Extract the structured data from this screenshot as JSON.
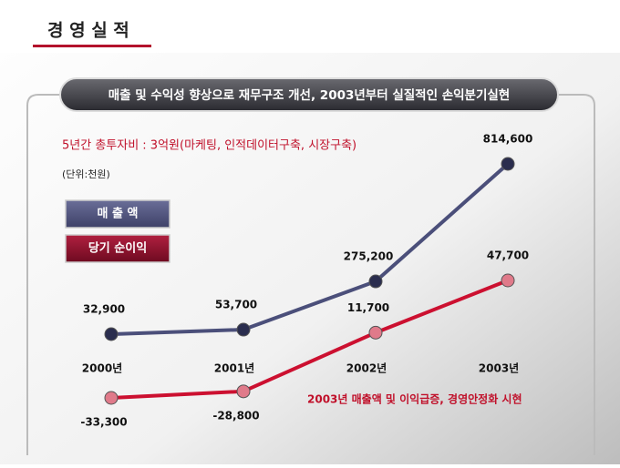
{
  "header": {
    "title": "경 영 실 적"
  },
  "banner": "매출 및 수익성 향상으로 재무구조 개선, 2003년부터 실질적인 손익분기실현",
  "chart_data": {
    "type": "line",
    "subtitle": "5년간 총투자비 : 3억원(마케팅, 인적데이터구축, 시장구축)",
    "unit_label": "(단위:천원)",
    "annotation": "2003년  매출액 및 이익급증, 경영안정화 시현",
    "categories": [
      "2000년",
      "2001년",
      "2002년",
      "2003년"
    ],
    "series": [
      {
        "name": "매 출 액",
        "color": "#4b4f7a",
        "marker_color": "#2a2d4e",
        "values": [
          32900,
          53700,
          275200,
          814600
        ],
        "value_labels": [
          "32,900",
          "53,700",
          "275,200",
          "814,600"
        ]
      },
      {
        "name": "당기 순이익",
        "color": "#cc1030",
        "marker_color": "#e07a8a",
        "axis": "y2",
        "values": [
          -33300,
          -28800,
          11700,
          47700
        ],
        "value_labels": [
          "-33,300",
          "-28,800",
          "11,700",
          "47,700"
        ]
      }
    ]
  }
}
